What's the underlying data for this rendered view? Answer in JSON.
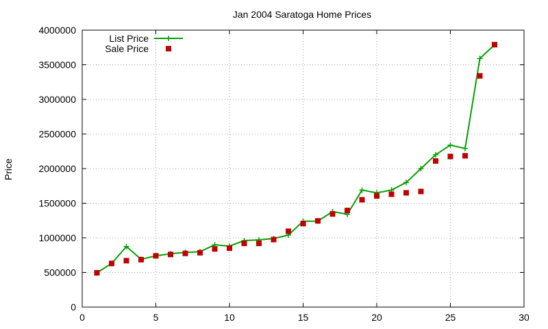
{
  "chart_data": {
    "type": "line",
    "title": "Jan 2004 Saratoga Home Prices",
    "xlabel": "",
    "ylabel": "Price",
    "xlim": [
      0,
      30
    ],
    "ylim": [
      0,
      4000000
    ],
    "xticks": [
      "0",
      "5",
      "10",
      "15",
      "20",
      "25",
      "30"
    ],
    "yticks": [
      "0",
      "500000",
      "1000000",
      "1500000",
      "2000000",
      "2500000",
      "3000000",
      "3500000",
      "4000000"
    ],
    "grid": true,
    "legend_position": "top-left",
    "series": [
      {
        "name": "List Price",
        "style": "line+cross",
        "color": "#00a000",
        "x": [
          1,
          2,
          3,
          4,
          5,
          6,
          7,
          8,
          9,
          10,
          11,
          12,
          13,
          14,
          15,
          16,
          17,
          18,
          19,
          20,
          21,
          22,
          23,
          24,
          25,
          26,
          27,
          28
        ],
        "y": [
          495000,
          630000,
          875000,
          690000,
          740000,
          770000,
          790000,
          800000,
          900000,
          880000,
          960000,
          970000,
          990000,
          1040000,
          1240000,
          1240000,
          1380000,
          1340000,
          1690000,
          1650000,
          1690000,
          1800000,
          2000000,
          2200000,
          2340000,
          2290000,
          3590000,
          3790000
        ]
      },
      {
        "name": "Sale Price",
        "style": "square-marker",
        "color": "#c00000",
        "x": [
          1,
          2,
          3,
          4,
          5,
          6,
          7,
          8,
          9,
          10,
          11,
          12,
          13,
          14,
          15,
          16,
          17,
          18,
          19,
          20,
          21,
          22,
          23,
          24,
          25,
          26,
          27,
          28
        ],
        "y": [
          495000,
          630000,
          670000,
          685000,
          740000,
          760000,
          775000,
          785000,
          840000,
          850000,
          920000,
          920000,
          975000,
          1095000,
          1205000,
          1245000,
          1345000,
          1395000,
          1550000,
          1605000,
          1630000,
          1650000,
          1670000,
          2110000,
          2175000,
          2185000,
          3340000,
          3790000
        ]
      }
    ]
  }
}
